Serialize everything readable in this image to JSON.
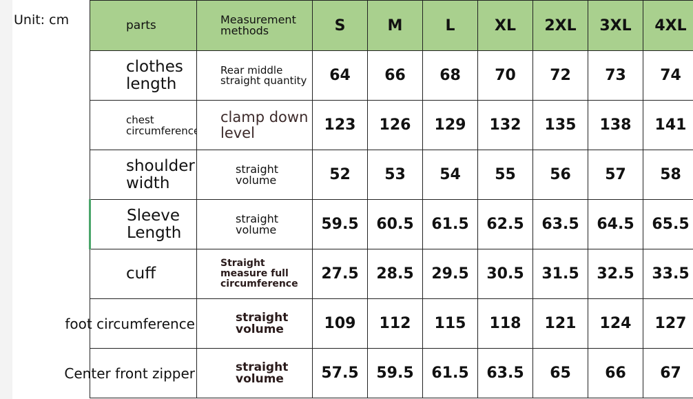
{
  "unit_label": "Unit: cm",
  "header": {
    "parts": "parts",
    "method": "Measurement methods",
    "sizes": [
      "S",
      "M",
      "L",
      "XL",
      "2XL",
      "3XL",
      "4XL"
    ]
  },
  "rows": [
    {
      "part": "clothes length",
      "method": "Rear middle straight quantity",
      "values": [
        "64",
        "66",
        "68",
        "70",
        "72",
        "73",
        "74"
      ]
    },
    {
      "part": "chest circumference",
      "method": "clamp down level",
      "values": [
        "123",
        "126",
        "129",
        "132",
        "135",
        "138",
        "141"
      ]
    },
    {
      "part": "shoulder width",
      "method": "straight volume",
      "values": [
        "52",
        "53",
        "54",
        "55",
        "56",
        "57",
        "58"
      ]
    },
    {
      "part": "Sleeve Length",
      "method": "straight volume",
      "values": [
        "59.5",
        "60.5",
        "61.5",
        "62.5",
        "63.5",
        "64.5",
        "65.5"
      ]
    },
    {
      "part": "cuff",
      "method": "Straight measure full circumference",
      "values": [
        "27.5",
        "28.5",
        "29.5",
        "30.5",
        "31.5",
        "32.5",
        "33.5"
      ]
    },
    {
      "part": "foot circumference",
      "method": "straight volume",
      "values": [
        "109",
        "112",
        "115",
        "118",
        "121",
        "124",
        "127"
      ]
    },
    {
      "part": "Center front zipper",
      "method": "straight volume",
      "values": [
        "57.5",
        "59.5",
        "61.5",
        "63.5",
        "65",
        "66",
        "67"
      ]
    }
  ]
}
